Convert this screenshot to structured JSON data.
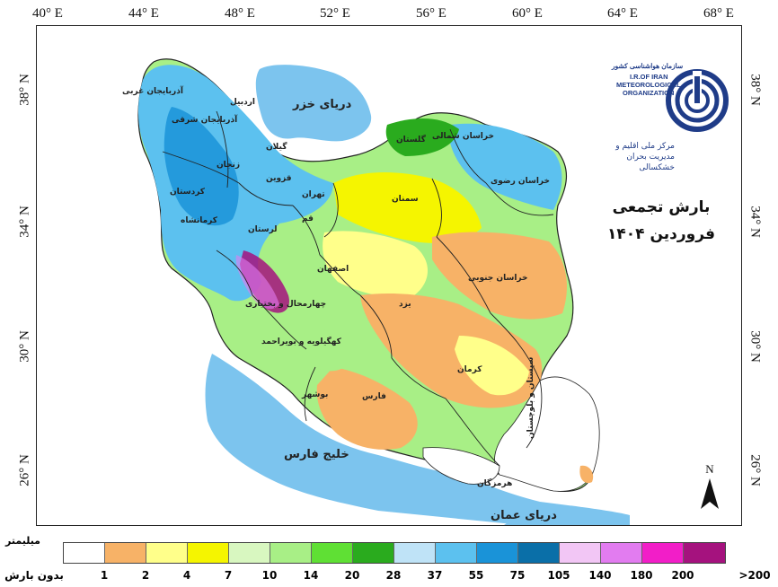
{
  "map": {
    "title_line1": "بارش تجمعی",
    "title_line2": "فروردین ۱۴۰۴",
    "north_label": "N",
    "lon_ticks": [
      "40° E",
      "44° E",
      "48° E",
      "52° E",
      "56° E",
      "60° E",
      "64° E",
      "68° E"
    ],
    "lat_ticks": [
      "38° N",
      "34° N",
      "30° N",
      "26° N"
    ],
    "seas": {
      "caspian": "دریای خزر",
      "persian_gulf": "خلیج فارس",
      "oman_sea": "دریای عمان"
    },
    "provinces": {
      "west_azerbaijan": "آذربایجان غربی",
      "east_azerbaijan": "آذربایجان شرقی",
      "ardabil": "اردبیل",
      "zanjan": "زنجان",
      "kurdistan": "کردستان",
      "kermanshah": "کرمانشاه",
      "qazvin": "قزوین",
      "gilan": "گیلان",
      "tehran": "تهران",
      "qom": "قم",
      "lorestan": "لرستان",
      "isfahan": "اصفهان",
      "semnan": "سمنان",
      "north_khorasan": "خراسان شمالی",
      "golestan": "گلستان",
      "razavi_khorasan": "خراسان رضوی",
      "south_khorasan": "خراسان جنوبی",
      "yazd": "یزد",
      "chaharmahal": "چهارمحال و بختیاری",
      "kohgiluyeh": "کهگیلویه و بویراحمد",
      "bushehr": "بوشهر",
      "fars": "فارس",
      "kerman": "کرمان",
      "hormozgan": "هرمزگان",
      "sistan": "سیستان و بلوچستان"
    }
  },
  "logo": {
    "fa_top": "سازمان هواشناسی کشور",
    "en_line1": "I.R.OF IRAN",
    "en_line2": "METEOROLOGICAL",
    "en_line3": "ORGANIZATION",
    "fa_bottom1": "مرکز ملی اقلیم و",
    "fa_bottom2": "مدیریت بحران خشکسالی"
  },
  "legend": {
    "unit": "میلیمتر",
    "colors": [
      "#ffffff",
      "#f7b267",
      "#ffff8a",
      "#f5f500",
      "#d8f7c0",
      "#a8ef86",
      "#5fe034",
      "#2aab1e",
      "#bfe3f7",
      "#5cc1ef",
      "#1a93d8",
      "#0a6fa8",
      "#f2c6f5",
      "#e27cf0",
      "#f21ec8",
      "#a5127e"
    ],
    "labels": [
      "بدون بارش",
      "1",
      "2",
      "4",
      "7",
      "10",
      "14",
      "20",
      "28",
      "37",
      "55",
      "75",
      "105",
      "140",
      "180",
      "200",
      ">200"
    ]
  }
}
